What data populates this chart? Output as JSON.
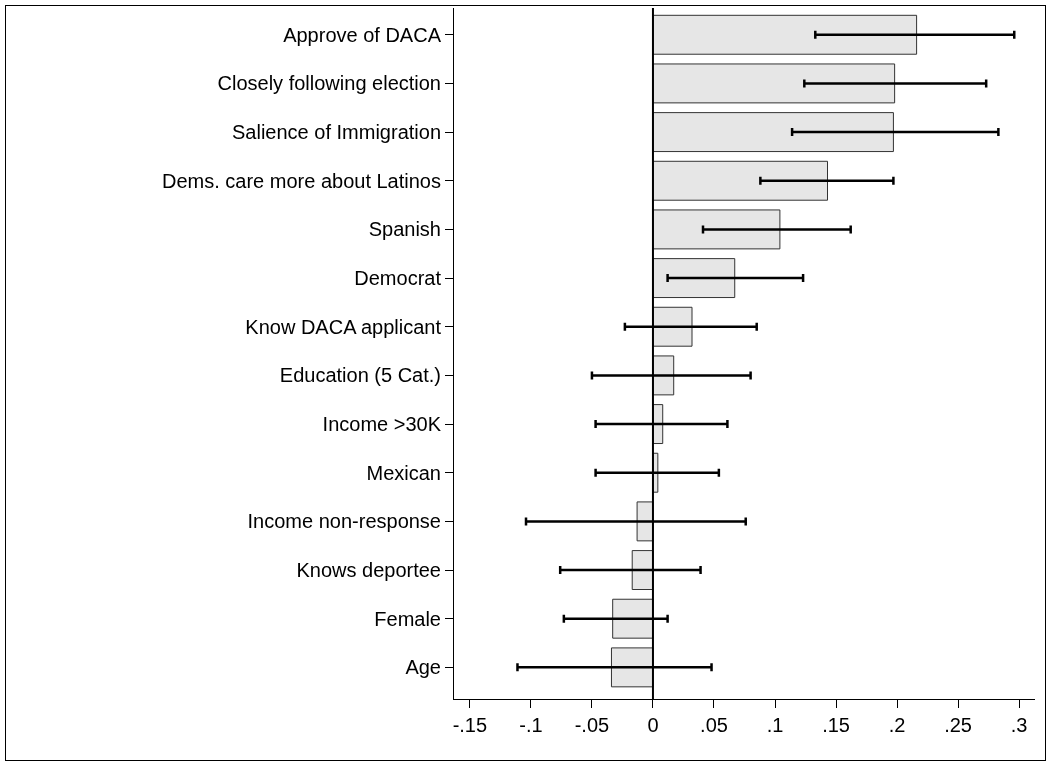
{
  "chart_data": {
    "type": "bar",
    "orientation": "horizontal",
    "categories": [
      "Approve of DACA",
      "Closely following election",
      "Salience of Immigration",
      "Dems. care more about Latinos",
      "Spanish",
      "Democrat",
      "Know DACA applicant",
      "Education (5 Cat.)",
      "Income >30K",
      "Mexican",
      "Income non-response",
      "Knows deportee",
      "Female",
      "Age"
    ],
    "values": [
      0.216,
      0.198,
      0.197,
      0.143,
      0.104,
      0.067,
      0.032,
      0.017,
      0.008,
      0.004,
      -0.013,
      -0.017,
      -0.033,
      -0.034
    ],
    "errors": [
      [
        0.133,
        0.296
      ],
      [
        0.124,
        0.273
      ],
      [
        0.114,
        0.283
      ],
      [
        0.088,
        0.197
      ],
      [
        0.041,
        0.162
      ],
      [
        0.012,
        0.123
      ],
      [
        -0.023,
        0.085
      ],
      [
        -0.05,
        0.08
      ],
      [
        -0.047,
        0.061
      ],
      [
        -0.047,
        0.054
      ],
      [
        -0.104,
        0.076
      ],
      [
        -0.076,
        0.039
      ],
      [
        -0.073,
        0.012
      ],
      [
        -0.111,
        0.048
      ]
    ],
    "color": "#e6e6e6",
    "xlim": [
      -0.163,
      0.313
    ],
    "xticks": [
      {
        "value": -0.15,
        "label": "-.15"
      },
      {
        "value": -0.1,
        "label": "-.1"
      },
      {
        "value": -0.05,
        "label": "-.05"
      },
      0,
      {
        "value": 0.05,
        "label": ".05"
      },
      {
        "value": 0.1,
        "label": ".1"
      },
      {
        "value": 0.15,
        "label": ".15"
      },
      {
        "value": 0.2,
        "label": ".2"
      },
      {
        "value": 0.25,
        "label": ".25"
      },
      {
        "value": 0.3,
        "label": ".3"
      }
    ],
    "ref_lines": [
      {
        "axis": "x",
        "value": 0
      }
    ],
    "grid": false,
    "legend": false
  }
}
